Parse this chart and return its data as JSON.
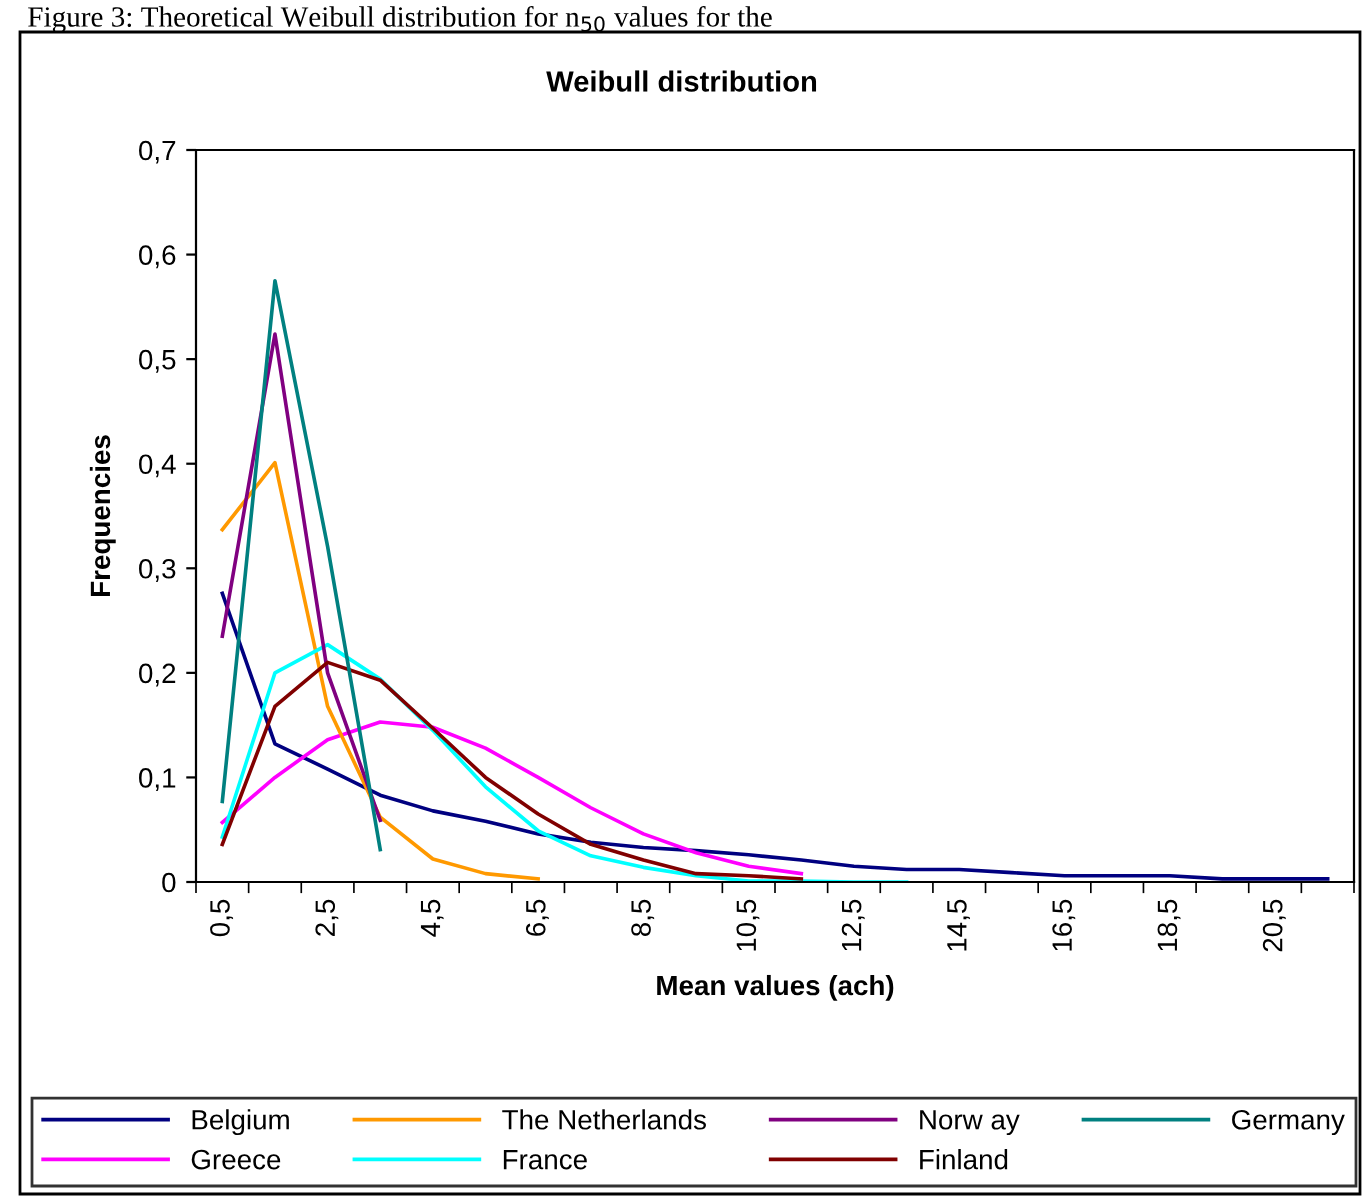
{
  "chart_data": {
    "type": "line",
    "title": "Weibull distribution",
    "xlabel": "Mean values (ach)",
    "ylabel": "Frequencies",
    "annotations": [
      "Figure 3: Theoretical Weibull distribution for n$_{50}$ values for the"
    ],
    "categories": [
      "0,5",
      null,
      "2,5",
      null,
      "4,5",
      null,
      "6,5",
      null,
      "8,5",
      null,
      "10,5",
      null,
      "12,5",
      null,
      "14,5",
      null,
      "16,5",
      null,
      "18,5",
      null,
      "20,5",
      null
    ],
    "ylim": [
      0,
      0.7
    ],
    "yticks": [
      {
        "value": 0,
        "label": "0"
      },
      {
        "value": 0.1,
        "label": "0,1"
      },
      {
        "value": 0.2,
        "label": "0,2"
      },
      {
        "value": 0.3,
        "label": "0,3"
      },
      {
        "value": 0.4,
        "label": "0,4"
      },
      {
        "value": 0.5,
        "label": "0,5"
      },
      {
        "value": 0.6,
        "label": "0,6"
      },
      {
        "value": 0.7,
        "label": "0,7"
      }
    ],
    "grid": false,
    "legend": "bottom",
    "marker": "none",
    "line_style": "solid",
    "series": [
      {
        "name": "Belgium",
        "color": "#000080",
        "values": [
          0.276,
          0.132,
          0.108,
          0.083,
          0.068,
          0.058,
          0.046,
          0.038,
          0.033,
          0.03,
          0.026,
          0.021,
          0.015,
          0.012,
          0.012,
          0.009,
          0.006,
          0.006,
          0.006,
          0.003,
          0.003,
          0.003
        ]
      },
      {
        "name": "Greece",
        "color": "#ff00ff",
        "values": [
          0.057,
          0.1,
          0.136,
          0.153,
          0.148,
          0.128,
          0.1,
          0.071,
          0.046,
          0.028,
          0.015,
          0.008,
          null,
          null,
          null,
          null,
          null,
          null,
          null,
          null,
          null,
          null
        ]
      },
      {
        "name": "The Netherlands",
        "color": "#ff9900",
        "values": [
          0.337,
          0.401,
          0.168,
          0.062,
          0.022,
          0.008,
          0.003,
          null,
          null,
          null,
          null,
          null,
          null,
          null,
          null,
          null,
          null,
          null,
          null,
          null,
          null,
          null
        ]
      },
      {
        "name": "France",
        "color": "#00ffff",
        "values": [
          0.043,
          0.2,
          0.227,
          0.194,
          0.145,
          0.091,
          0.049,
          0.025,
          0.014,
          0.006,
          0.001,
          0.001,
          0.0,
          0.0,
          null,
          null,
          null,
          null,
          null,
          null,
          null,
          null
        ]
      },
      {
        "name": "Norw ay",
        "color": "#800080",
        "values": [
          0.235,
          0.524,
          0.2,
          0.059,
          null,
          null,
          null,
          null,
          null,
          null,
          null,
          null,
          null,
          null,
          null,
          null,
          null,
          null,
          null,
          null,
          null,
          null
        ]
      },
      {
        "name": "Finland",
        "color": "#800000",
        "values": [
          0.036,
          0.168,
          0.21,
          0.193,
          0.147,
          0.1,
          0.065,
          0.036,
          0.021,
          0.008,
          0.006,
          0.003,
          null,
          null,
          null,
          null,
          null,
          null,
          null,
          null,
          null,
          null
        ]
      },
      {
        "name": "Germany",
        "color": "#008080",
        "values": [
          0.077,
          0.575,
          0.321,
          0.031,
          null,
          null,
          null,
          null,
          null,
          null,
          null,
          null,
          null,
          null,
          null,
          null,
          null,
          null,
          null,
          null,
          null,
          null
        ]
      }
    ]
  }
}
